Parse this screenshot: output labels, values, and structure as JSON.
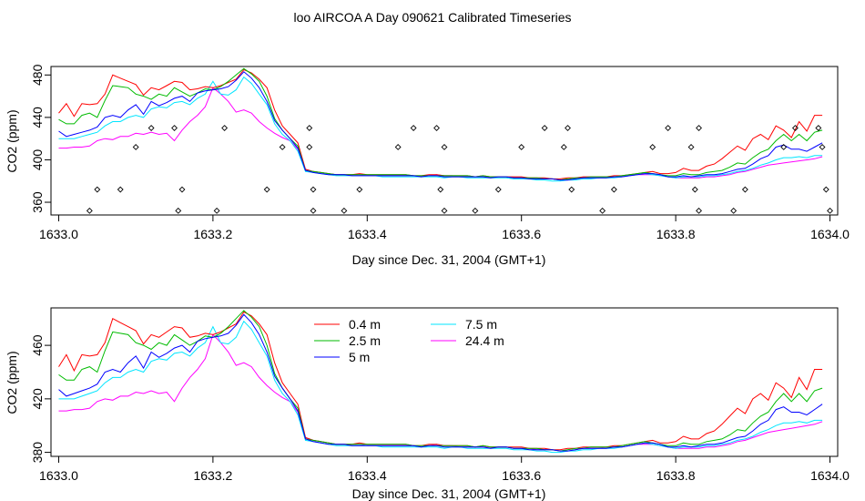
{
  "title": "loo AIRCOA A  Day 090621  Calibrated Timeseries",
  "colors": {
    "0.4 m": "#ff0000",
    "2.5 m": "#00bb00",
    "5 m": "#0000ff",
    "7.5 m": "#00e5ff",
    "24.4 m": "#ff00ff"
  },
  "chart_data": [
    {
      "type": "line",
      "panel": "top",
      "xlabel": "Day since Dec. 31, 2004 (GMT+1)",
      "ylabel": "CO2 (ppm)",
      "xlim": [
        1632.99,
        1634.01
      ],
      "ylim": [
        348,
        488
      ],
      "xticks": [
        1633.0,
        1633.2,
        1633.4,
        1633.6,
        1633.8,
        1634.0
      ],
      "xtick_labels": [
        "1633.0",
        "1633.2",
        "1633.4",
        "1633.6",
        "1633.8",
        "1634.0"
      ],
      "yticks": [
        360,
        400,
        440,
        480
      ],
      "ytick_labels": [
        "360",
        "400",
        "440",
        "480"
      ],
      "legend": "none",
      "x": [
        1633.0,
        1633.01,
        1633.02,
        1633.03,
        1633.04,
        1633.05,
        1633.06,
        1633.07,
        1633.08,
        1633.09,
        1633.1,
        1633.11,
        1633.12,
        1633.13,
        1633.14,
        1633.15,
        1633.16,
        1633.17,
        1633.18,
        1633.19,
        1633.2,
        1633.21,
        1633.22,
        1633.23,
        1633.24,
        1633.25,
        1633.26,
        1633.27,
        1633.28,
        1633.29,
        1633.3,
        1633.31,
        1633.32,
        1633.33,
        1633.34,
        1633.35,
        1633.36,
        1633.37,
        1633.38,
        1633.39,
        1633.4,
        1633.41,
        1633.42,
        1633.43,
        1633.44,
        1633.45,
        1633.46,
        1633.47,
        1633.48,
        1633.49,
        1633.5,
        1633.51,
        1633.52,
        1633.53,
        1633.54,
        1633.55,
        1633.56,
        1633.57,
        1633.58,
        1633.59,
        1633.6,
        1633.61,
        1633.62,
        1633.63,
        1633.64,
        1633.65,
        1633.66,
        1633.67,
        1633.68,
        1633.69,
        1633.7,
        1633.71,
        1633.72,
        1633.73,
        1633.74,
        1633.75,
        1633.76,
        1633.77,
        1633.78,
        1633.79,
        1633.8,
        1633.81,
        1633.82,
        1633.83,
        1633.84,
        1633.85,
        1633.86,
        1633.87,
        1633.88,
        1633.89,
        1633.9,
        1633.91,
        1633.92,
        1633.93,
        1633.94,
        1633.95,
        1633.96,
        1633.97,
        1633.98,
        1633.99
      ],
      "series": [
        {
          "name": "0.4 m",
          "values": [
            444,
            453,
            441,
            453,
            452,
            453,
            462,
            480,
            477,
            474,
            471,
            461,
            468,
            466,
            470,
            474,
            473,
            466,
            467,
            469,
            468,
            470,
            473,
            476,
            485,
            482,
            476,
            468,
            447,
            432,
            424,
            416,
            391,
            389,
            388,
            387,
            386,
            386,
            386,
            387,
            386,
            386,
            386,
            386,
            386,
            386,
            385,
            385,
            386,
            386,
            385,
            385,
            385,
            385,
            384,
            385,
            384,
            384,
            384,
            384,
            384,
            383,
            383,
            383,
            382,
            382,
            383,
            383,
            384,
            384,
            384,
            384,
            385,
            385,
            386,
            387,
            388,
            389,
            387,
            387,
            388,
            392,
            390,
            390,
            394,
            396,
            401,
            407,
            413,
            409,
            420,
            424,
            419,
            432,
            428,
            421,
            436,
            427,
            442,
            442
          ]
        },
        {
          "name": "2.5 m",
          "values": [
            438,
            434,
            434,
            442,
            444,
            440,
            456,
            470,
            469,
            468,
            462,
            460,
            457,
            462,
            460,
            468,
            464,
            460,
            463,
            467,
            466,
            469,
            474,
            480,
            486,
            481,
            474,
            460,
            439,
            428,
            420,
            413,
            390,
            389,
            388,
            387,
            386,
            386,
            386,
            386,
            386,
            386,
            386,
            386,
            386,
            386,
            385,
            385,
            385,
            385,
            385,
            385,
            385,
            385,
            384,
            385,
            384,
            384,
            384,
            383,
            383,
            383,
            383,
            382,
            382,
            381,
            382,
            383,
            383,
            384,
            384,
            384,
            384,
            385,
            386,
            387,
            388,
            387,
            386,
            385,
            385,
            387,
            386,
            386,
            388,
            389,
            390,
            393,
            397,
            396,
            402,
            407,
            410,
            418,
            424,
            418,
            424,
            418,
            426,
            428
          ]
        },
        {
          "name": "5 m",
          "values": [
            427,
            422,
            424,
            426,
            428,
            431,
            440,
            442,
            440,
            447,
            452,
            443,
            455,
            451,
            454,
            458,
            460,
            455,
            463,
            465,
            466,
            467,
            469,
            475,
            483,
            477,
            468,
            455,
            437,
            428,
            420,
            411,
            390,
            388,
            387,
            386,
            386,
            386,
            385,
            385,
            385,
            385,
            385,
            385,
            385,
            385,
            385,
            384,
            385,
            385,
            384,
            384,
            384,
            384,
            384,
            384,
            383,
            384,
            384,
            383,
            383,
            382,
            382,
            382,
            382,
            381,
            381,
            382,
            383,
            383,
            383,
            383,
            384,
            384,
            385,
            386,
            387,
            387,
            386,
            384,
            384,
            385,
            384,
            385,
            386,
            386,
            387,
            389,
            391,
            392,
            396,
            401,
            404,
            412,
            414,
            410,
            410,
            408,
            412,
            416
          ]
        },
        {
          "name": "7.5 m",
          "values": [
            420,
            420,
            420,
            422,
            424,
            426,
            432,
            436,
            436,
            440,
            442,
            440,
            448,
            450,
            449,
            454,
            455,
            452,
            458,
            462,
            474,
            462,
            461,
            466,
            478,
            472,
            462,
            452,
            434,
            424,
            418,
            408,
            389,
            388,
            387,
            386,
            385,
            385,
            385,
            385,
            385,
            385,
            384,
            384,
            384,
            384,
            384,
            384,
            384,
            384,
            383,
            384,
            384,
            383,
            383,
            383,
            383,
            383,
            383,
            382,
            382,
            382,
            381,
            381,
            380,
            380,
            381,
            381,
            382,
            382,
            383,
            383,
            383,
            384,
            385,
            386,
            387,
            386,
            385,
            384,
            383,
            384,
            384,
            384,
            385,
            385,
            386,
            387,
            389,
            390,
            392,
            395,
            397,
            400,
            402,
            402,
            403,
            402,
            404,
            404
          ]
        },
        {
          "name": "24.4 m",
          "values": [
            411,
            411,
            412,
            412,
            413,
            418,
            420,
            419,
            422,
            422,
            425,
            424,
            426,
            424,
            425,
            418,
            428,
            436,
            442,
            450,
            468,
            462,
            455,
            445,
            447,
            444,
            436,
            430,
            425,
            421,
            418,
            410,
            391,
            389,
            388,
            387,
            386,
            386,
            386,
            386,
            385,
            385,
            385,
            385,
            385,
            385,
            385,
            384,
            385,
            386,
            385,
            385,
            384,
            384,
            384,
            384,
            384,
            384,
            384,
            383,
            383,
            383,
            382,
            382,
            382,
            381,
            381,
            382,
            383,
            383,
            383,
            384,
            384,
            384,
            385,
            386,
            386,
            386,
            385,
            384,
            383,
            383,
            383,
            383,
            384,
            384,
            385,
            386,
            388,
            389,
            391,
            393,
            395,
            396,
            397,
            398,
            399,
            400,
            401,
            403
          ]
        }
      ],
      "calibration_points": {
        "x": [
          1633.04,
          1633.05,
          1633.08,
          1633.1,
          1633.12,
          1633.15,
          1633.155,
          1633.16,
          1633.205,
          1633.215,
          1633.27,
          1633.29,
          1633.325,
          1633.325,
          1633.33,
          1633.33,
          1633.37,
          1633.39,
          1633.44,
          1633.46,
          1633.49,
          1633.495,
          1633.5,
          1633.5,
          1633.54,
          1633.57,
          1633.6,
          1633.63,
          1633.655,
          1633.66,
          1633.665,
          1633.705,
          1633.72,
          1633.77,
          1633.79,
          1633.82,
          1633.825,
          1633.83,
          1633.83,
          1633.875,
          1633.89,
          1633.94,
          1633.955,
          1633.985,
          1633.99,
          1633.995,
          1634.0
        ],
        "y": [
          352,
          372,
          372,
          412,
          430,
          430,
          352,
          372,
          352,
          430,
          372,
          412,
          430,
          412,
          352,
          372,
          352,
          372,
          412,
          430,
          430,
          372,
          352,
          412,
          352,
          372,
          412,
          430,
          412,
          430,
          372,
          352,
          372,
          412,
          430,
          412,
          372,
          352,
          430,
          352,
          372,
          412,
          430,
          430,
          412,
          372,
          352
        ]
      }
    },
    {
      "type": "line",
      "panel": "bottom",
      "xlabel": "Day since Dec. 31, 2004 (GMT+1)",
      "ylabel": "CO2 (ppm)",
      "xlim": [
        1632.99,
        1634.01
      ],
      "ylim": [
        377,
        488
      ],
      "xticks": [
        1633.0,
        1633.2,
        1633.4,
        1633.6,
        1633.8,
        1634.0
      ],
      "xtick_labels": [
        "1633.0",
        "1633.2",
        "1633.4",
        "1633.6",
        "1633.8",
        "1634.0"
      ],
      "yticks": [
        380,
        420,
        460
      ],
      "ytick_labels": [
        "380",
        "420",
        "460"
      ],
      "legend": "top-center",
      "legend_items": [
        "0.4 m",
        "2.5 m",
        "5 m",
        "7.5 m",
        "24.4 m"
      ],
      "same_series_as_top": true
    }
  ]
}
